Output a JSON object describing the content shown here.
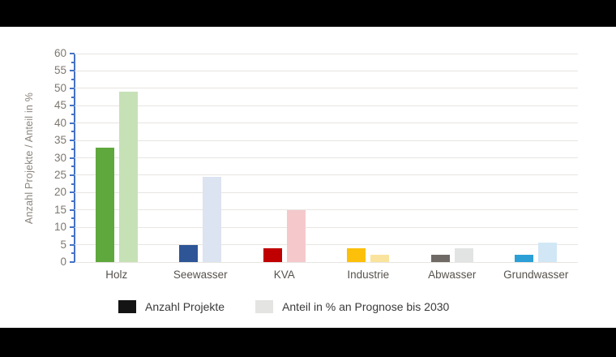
{
  "chart_data": {
    "type": "bar",
    "title": "",
    "xlabel": "",
    "ylabel": "Anzahl Projekte / Anteil in %",
    "ylim": [
      0,
      60
    ],
    "yticks": [
      0,
      5,
      10,
      15,
      20,
      25,
      30,
      35,
      40,
      45,
      50,
      55,
      60
    ],
    "grid": true,
    "legend_position": "bottom",
    "categories": [
      "Holz",
      "Seewasser",
      "KVA",
      "Industrie",
      "Abwasser",
      "Grundwasser"
    ],
    "series": [
      {
        "name": "Anzahl Projekte",
        "values": [
          33,
          5,
          4,
          4,
          2,
          2
        ],
        "colors": [
          "#5fa83d",
          "#2e5596",
          "#c00000",
          "#fcc00b",
          "#6f6a66",
          "#2c9fd6"
        ]
      },
      {
        "name": "Anteil in % an Prognose bis 2030",
        "values": [
          49,
          24.5,
          15,
          2,
          4,
          5.5
        ],
        "colors": [
          "#c7e1b7",
          "#dce3f1",
          "#f5c9cc",
          "#fae49d",
          "#e2e3e3",
          "#d2e7f5"
        ]
      }
    ]
  },
  "legend": {
    "items": [
      {
        "label": "Anzahl Projekte",
        "swatch": "#141414"
      },
      {
        "label": "Anteil in % an Prognose bis 2030",
        "swatch": "#e4e4e2"
      }
    ]
  },
  "colors": {
    "axis_line": "#4472c4",
    "gridline": "#e8e5e1",
    "background": "#ffffff",
    "frame": "#000000"
  }
}
